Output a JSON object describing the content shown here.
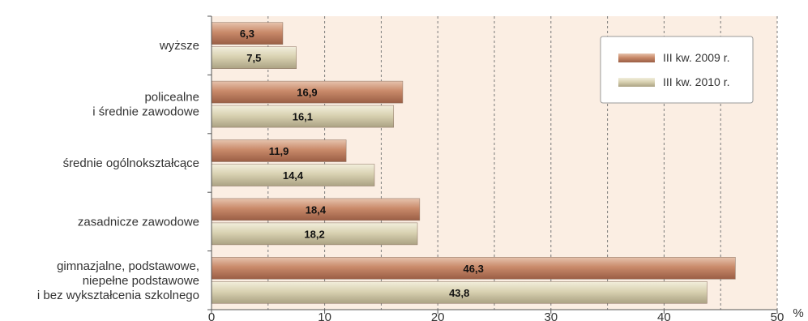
{
  "chart_data": {
    "type": "bar",
    "orientation": "horizontal",
    "categories": [
      [
        "wyższe"
      ],
      [
        "policealne",
        "i średnie zawodowe"
      ],
      [
        "średnie ogólnokształcące"
      ],
      [
        "zasadnicze zawodowe"
      ],
      [
        "gimnazjalne, podstawowe,",
        "niepełne podstawowe",
        "i bez wykształcenia szkolnego"
      ]
    ],
    "series": [
      {
        "name": "III kw. 2009 r.",
        "values": [
          6.3,
          16.9,
          11.9,
          18.4,
          46.3
        ],
        "labels": [
          "6,3",
          "16,9",
          "11,9",
          "18,4",
          "46,3"
        ],
        "color": "#c98a6a"
      },
      {
        "name": "III kw. 2010 r.",
        "values": [
          7.5,
          16.1,
          14.4,
          18.2,
          43.8
        ],
        "labels": [
          "7,5",
          "16,1",
          "14,4",
          "18,2",
          "43,8"
        ],
        "color": "#d9d2b2"
      }
    ],
    "xticks": [
      0,
      10,
      20,
      30,
      40,
      50
    ],
    "xlim": [
      0,
      50
    ],
    "xunit": "%",
    "grid": true,
    "legend_position": "top-right",
    "plot_background": "#fbeee3"
  }
}
